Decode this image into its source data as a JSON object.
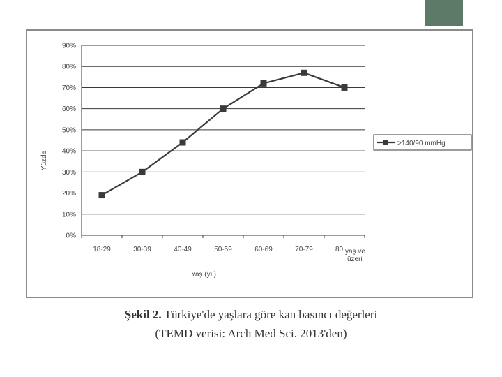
{
  "chart_data": {
    "type": "line",
    "categories": [
      "18-29",
      "30-39",
      "40-49",
      "50-59",
      "60-69",
      "70-79",
      "80 yaş ve üzeri"
    ],
    "category_ticks": [
      [
        "18-29"
      ],
      [
        "30-39"
      ],
      [
        "40-49"
      ],
      [
        "50-59"
      ],
      [
        "60-69"
      ],
      [
        "70-79"
      ],
      [
        "80",
        "yaş ve",
        "üzeri"
      ]
    ],
    "series": [
      {
        "name": ">140/90 mmHg",
        "values": [
          19,
          30,
          44,
          60,
          72,
          77,
          70
        ],
        "color": "#3a3a3a",
        "marker": "square"
      }
    ],
    "ylim": [
      0,
      90
    ],
    "yticks": [
      "0%",
      "10%",
      "20%",
      "30%",
      "40%",
      "50%",
      "60%",
      "70%",
      "80%",
      "90%"
    ],
    "ylabel": "Yüzde",
    "xlabel": "Yaş (yıl)",
    "grid": "horizontal",
    "legend_position": "right"
  },
  "caption": {
    "label": "Şekil 2.",
    "text": " Türkiye'de yaşlara göre kan basıncı değerleri",
    "source": "(TEMD verisi: Arch Med Sci. 2013'den)"
  },
  "colors": {
    "corner_block": "#5d7a68",
    "frame": "#8a8a8a",
    "line": "#3a3a3a"
  }
}
